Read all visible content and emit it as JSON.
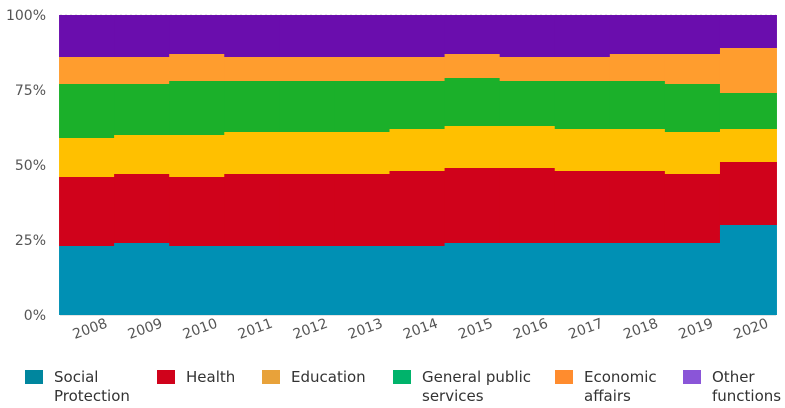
{
  "chart_data": {
    "type": "bar",
    "stacked": true,
    "normalized": true,
    "categories": [
      "2008",
      "2009",
      "2010",
      "2011",
      "2012",
      "2013",
      "2014",
      "2015",
      "2016",
      "2017",
      "2018",
      "2019",
      "2020"
    ],
    "y_ticks": [
      "0%",
      "25%",
      "50%",
      "75%",
      "100%"
    ],
    "ylim": [
      0,
      100
    ],
    "grid": true,
    "legend_position": "bottom",
    "series": [
      {
        "name": "Social Protection",
        "color": "#0090b4",
        "values": [
          23,
          24,
          23,
          23,
          23,
          23,
          23,
          24,
          24,
          24,
          24,
          24,
          30
        ]
      },
      {
        "name": "Health",
        "color": "#d0021b",
        "values": [
          23,
          23,
          23,
          24,
          24,
          24,
          25,
          25,
          25,
          24,
          24,
          23,
          21
        ]
      },
      {
        "name": "Education",
        "color": "#ffc000",
        "values": [
          13,
          13,
          14,
          14,
          14,
          14,
          14,
          14,
          14,
          14,
          14,
          14,
          11
        ]
      },
      {
        "name": "General public services",
        "color": "#1bb02a",
        "values": [
          18,
          17,
          18,
          17,
          17,
          17,
          16,
          16,
          15,
          16,
          16,
          16,
          12
        ]
      },
      {
        "name": "Economic affairs",
        "color": "#ff9d2e",
        "values": [
          9,
          9,
          9,
          8,
          8,
          8,
          8,
          8,
          8,
          8,
          9,
          10,
          15
        ]
      },
      {
        "name": "Other functions",
        "color": "#6a0dad",
        "values": [
          14,
          14,
          13,
          14,
          14,
          14,
          14,
          13,
          14,
          14,
          13,
          13,
          11
        ]
      }
    ]
  },
  "legend": {
    "items": [
      {
        "label": "Social Protection",
        "color": "#00869e"
      },
      {
        "label": "Health",
        "color": "#d0021b"
      },
      {
        "label": "Education",
        "color": "#e8a23a"
      },
      {
        "label": "General public services",
        "color": "#00b36b"
      },
      {
        "label": "Economic affairs",
        "color": "#ff8c2e"
      },
      {
        "label": "Other functions",
        "color": "#8a55d8"
      }
    ]
  }
}
